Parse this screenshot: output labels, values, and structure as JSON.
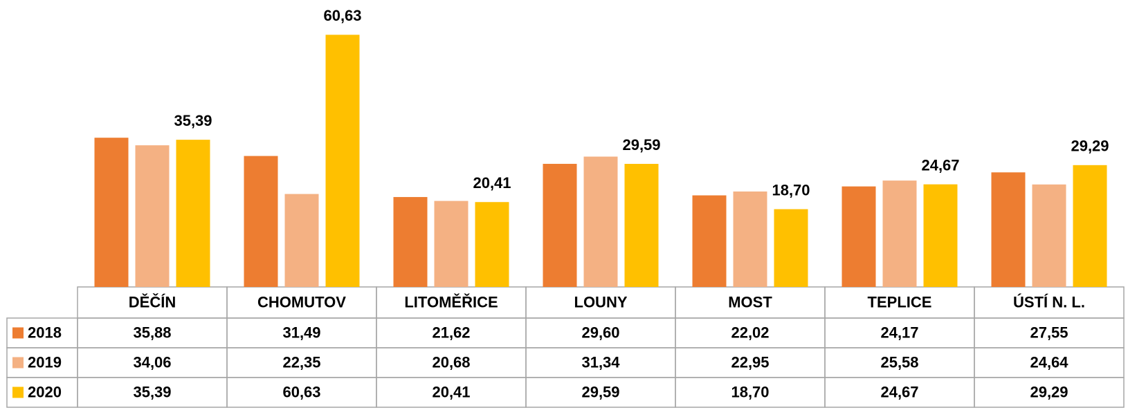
{
  "chart_data": {
    "type": "bar",
    "categories": [
      "DĚČÍN",
      "CHOMUTOV",
      "LITOMĚŘICE",
      "LOUNY",
      "MOST",
      "TEPLICE",
      "ÚSTÍ N. L."
    ],
    "series": [
      {
        "name": "2018",
        "color": "#ed7d31",
        "values": [
          35.88,
          31.49,
          21.62,
          29.6,
          22.02,
          24.17,
          27.55
        ],
        "value_labels": [
          "35,88",
          "31,49",
          "21,62",
          "29,60",
          "22,02",
          "24,17",
          "27,55"
        ]
      },
      {
        "name": "2019",
        "color": "#f4b183",
        "values": [
          34.06,
          22.35,
          20.68,
          31.34,
          22.95,
          25.58,
          24.64
        ],
        "value_labels": [
          "34,06",
          "22,35",
          "20,68",
          "31,34",
          "22,95",
          "25,58",
          "24,64"
        ]
      },
      {
        "name": "2020",
        "color": "#ffc000",
        "values": [
          35.39,
          60.63,
          20.41,
          29.59,
          18.7,
          24.67,
          29.29
        ],
        "value_labels": [
          "35,39",
          "60,63",
          "20,41",
          "29,59",
          "18,70",
          "24,67",
          "29,29"
        ]
      }
    ],
    "ylim": [
      0,
      67
    ]
  }
}
